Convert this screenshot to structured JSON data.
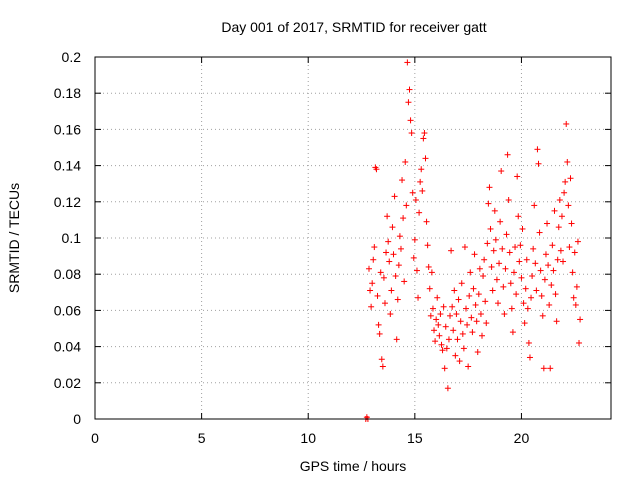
{
  "chart_data": {
    "type": "scatter",
    "title": "Day 001 of 2017, SRMTID for receiver gatt",
    "xlabel": "GPS time / hours",
    "ylabel": "SRMTID / TECUs",
    "xlim": [
      0,
      24.2
    ],
    "ylim": [
      0,
      0.2
    ],
    "xticks": [
      "0",
      "5",
      "10",
      "15",
      "20"
    ],
    "yticks": [
      "0",
      "0.02",
      "0.04",
      "0.06",
      "0.08",
      "0.1",
      "0.12",
      "0.14",
      "0.16",
      "0.18",
      "0.2"
    ],
    "grid": true,
    "marker": "+",
    "marker_color": "#ff0000",
    "grid_color": "#a0a0a0",
    "series": [
      {
        "points": [
          [
            12.7,
            0.0
          ],
          [
            12.75,
            0.001
          ],
          [
            12.8,
            0.0
          ],
          [
            12.85,
            0.083
          ],
          [
            12.9,
            0.071
          ],
          [
            12.95,
            0.062
          ],
          [
            13.0,
            0.075
          ],
          [
            13.05,
            0.088
          ],
          [
            13.1,
            0.095
          ],
          [
            13.15,
            0.139
          ],
          [
            13.2,
            0.138
          ],
          [
            13.25,
            0.068
          ],
          [
            13.3,
            0.052
          ],
          [
            13.35,
            0.047
          ],
          [
            13.4,
            0.081
          ],
          [
            13.45,
            0.033
          ],
          [
            13.5,
            0.029
          ],
          [
            13.55,
            0.078
          ],
          [
            13.6,
            0.064
          ],
          [
            13.65,
            0.092
          ],
          [
            13.7,
            0.112
          ],
          [
            13.75,
            0.098
          ],
          [
            13.8,
            0.087
          ],
          [
            13.85,
            0.058
          ],
          [
            13.9,
            0.071
          ],
          [
            13.95,
            0.106
          ],
          [
            14.0,
            0.091
          ],
          [
            14.05,
            0.123
          ],
          [
            14.1,
            0.079
          ],
          [
            14.15,
            0.044
          ],
          [
            14.2,
            0.066
          ],
          [
            14.25,
            0.085
          ],
          [
            14.3,
            0.101
          ],
          [
            14.35,
            0.094
          ],
          [
            14.4,
            0.132
          ],
          [
            14.45,
            0.111
          ],
          [
            14.5,
            0.076
          ],
          [
            14.55,
            0.142
          ],
          [
            14.6,
            0.118
          ],
          [
            14.65,
            0.197
          ],
          [
            14.7,
            0.175
          ],
          [
            14.75,
            0.182
          ],
          [
            14.8,
            0.165
          ],
          [
            14.85,
            0.158
          ],
          [
            14.9,
            0.125
          ],
          [
            14.95,
            0.089
          ],
          [
            15.0,
            0.099
          ],
          [
            15.05,
            0.121
          ],
          [
            15.1,
            0.082
          ],
          [
            15.15,
            0.067
          ],
          [
            15.2,
            0.114
          ],
          [
            15.25,
            0.131
          ],
          [
            15.3,
            0.138
          ],
          [
            15.35,
            0.126
          ],
          [
            15.4,
            0.155
          ],
          [
            15.45,
            0.158
          ],
          [
            15.5,
            0.144
          ],
          [
            15.55,
            0.109
          ],
          [
            15.6,
            0.096
          ],
          [
            15.65,
            0.084
          ],
          [
            15.7,
            0.072
          ],
          [
            15.75,
            0.057
          ],
          [
            15.8,
            0.081
          ],
          [
            15.85,
            0.061
          ],
          [
            15.9,
            0.049
          ],
          [
            15.95,
            0.043
          ],
          [
            16.0,
            0.055
          ],
          [
            16.05,
            0.067
          ],
          [
            16.1,
            0.052
          ],
          [
            16.15,
            0.046
          ],
          [
            16.2,
            0.058
          ],
          [
            16.25,
            0.041
          ],
          [
            16.3,
            0.038
          ],
          [
            16.35,
            0.062
          ],
          [
            16.4,
            0.028
          ],
          [
            16.45,
            0.051
          ],
          [
            16.5,
            0.039
          ],
          [
            16.55,
            0.017
          ],
          [
            16.6,
            0.044
          ],
          [
            16.65,
            0.057
          ],
          [
            16.7,
            0.093
          ],
          [
            16.75,
            0.062
          ],
          [
            16.8,
            0.049
          ],
          [
            16.85,
            0.071
          ],
          [
            16.9,
            0.035
          ],
          [
            16.95,
            0.058
          ],
          [
            17.0,
            0.044
          ],
          [
            17.05,
            0.066
          ],
          [
            17.1,
            0.032
          ],
          [
            17.15,
            0.054
          ],
          [
            17.2,
            0.075
          ],
          [
            17.25,
            0.047
          ],
          [
            17.3,
            0.039
          ],
          [
            17.35,
            0.095
          ],
          [
            17.4,
            0.061
          ],
          [
            17.45,
            0.052
          ],
          [
            17.5,
            0.029
          ],
          [
            17.55,
            0.068
          ],
          [
            17.6,
            0.081
          ],
          [
            17.65,
            0.056
          ],
          [
            17.7,
            0.048
          ],
          [
            17.75,
            0.072
          ],
          [
            17.8,
            0.091
          ],
          [
            17.85,
            0.063
          ],
          [
            17.9,
            0.054
          ],
          [
            17.95,
            0.037
          ],
          [
            18.0,
            0.069
          ],
          [
            18.05,
            0.083
          ],
          [
            18.1,
            0.058
          ],
          [
            18.15,
            0.046
          ],
          [
            18.2,
            0.079
          ],
          [
            18.25,
            0.088
          ],
          [
            18.3,
            0.065
          ],
          [
            18.35,
            0.053
          ],
          [
            18.4,
            0.097
          ],
          [
            18.45,
            0.119
          ],
          [
            18.5,
            0.128
          ],
          [
            18.55,
            0.105
          ],
          [
            18.6,
            0.084
          ],
          [
            18.65,
            0.071
          ],
          [
            18.7,
            0.093
          ],
          [
            18.75,
            0.115
          ],
          [
            18.8,
            0.099
          ],
          [
            18.85,
            0.077
          ],
          [
            18.9,
            0.064
          ],
          [
            18.95,
            0.086
          ],
          [
            19.0,
            0.109
          ],
          [
            19.05,
            0.137
          ],
          [
            19.1,
            0.094
          ],
          [
            19.15,
            0.073
          ],
          [
            19.2,
            0.058
          ],
          [
            19.25,
            0.083
          ],
          [
            19.3,
            0.102
          ],
          [
            19.35,
            0.146
          ],
          [
            19.4,
            0.121
          ],
          [
            19.45,
            0.092
          ],
          [
            19.5,
            0.075
          ],
          [
            19.55,
            0.061
          ],
          [
            19.6,
            0.048
          ],
          [
            19.65,
            0.081
          ],
          [
            19.7,
            0.095
          ],
          [
            19.75,
            0.069
          ],
          [
            19.8,
            0.134
          ],
          [
            19.85,
            0.112
          ],
          [
            19.9,
            0.087
          ],
          [
            19.95,
            0.096
          ],
          [
            20.0,
            0.078
          ],
          [
            20.05,
            0.105
          ],
          [
            20.1,
            0.064
          ],
          [
            20.15,
            0.053
          ],
          [
            20.2,
            0.072
          ],
          [
            20.25,
            0.088
          ],
          [
            20.3,
            0.061
          ],
          [
            20.35,
            0.042
          ],
          [
            20.4,
            0.034
          ],
          [
            20.45,
            0.067
          ],
          [
            20.5,
            0.079
          ],
          [
            20.55,
            0.094
          ],
          [
            20.6,
            0.118
          ],
          [
            20.65,
            0.086
          ],
          [
            20.7,
            0.071
          ],
          [
            20.75,
            0.149
          ],
          [
            20.8,
            0.141
          ],
          [
            20.85,
            0.103
          ],
          [
            20.9,
            0.082
          ],
          [
            20.95,
            0.068
          ],
          [
            21.0,
            0.057
          ],
          [
            21.05,
            0.028
          ],
          [
            21.1,
            0.077
          ],
          [
            21.15,
            0.091
          ],
          [
            21.2,
            0.108
          ],
          [
            21.25,
            0.085
          ],
          [
            21.3,
            0.063
          ],
          [
            21.35,
            0.028
          ],
          [
            21.4,
            0.074
          ],
          [
            21.45,
            0.096
          ],
          [
            21.5,
            0.082
          ],
          [
            21.55,
            0.115
          ],
          [
            21.6,
            0.069
          ],
          [
            21.65,
            0.054
          ],
          [
            21.7,
            0.088
          ],
          [
            21.75,
            0.106
          ],
          [
            21.8,
            0.121
          ],
          [
            21.85,
            0.093
          ],
          [
            21.9,
            0.112
          ],
          [
            21.95,
            0.087
          ],
          [
            22.0,
            0.125
          ],
          [
            22.05,
            0.131
          ],
          [
            22.1,
            0.163
          ],
          [
            22.15,
            0.142
          ],
          [
            22.2,
            0.118
          ],
          [
            22.25,
            0.095
          ],
          [
            22.3,
            0.133
          ],
          [
            22.35,
            0.108
          ],
          [
            22.4,
            0.081
          ],
          [
            22.45,
            0.067
          ],
          [
            22.5,
            0.092
          ],
          [
            22.55,
            0.063
          ],
          [
            22.6,
            0.073
          ],
          [
            22.65,
            0.098
          ],
          [
            22.7,
            0.042
          ],
          [
            22.75,
            0.055
          ]
        ]
      }
    ]
  }
}
